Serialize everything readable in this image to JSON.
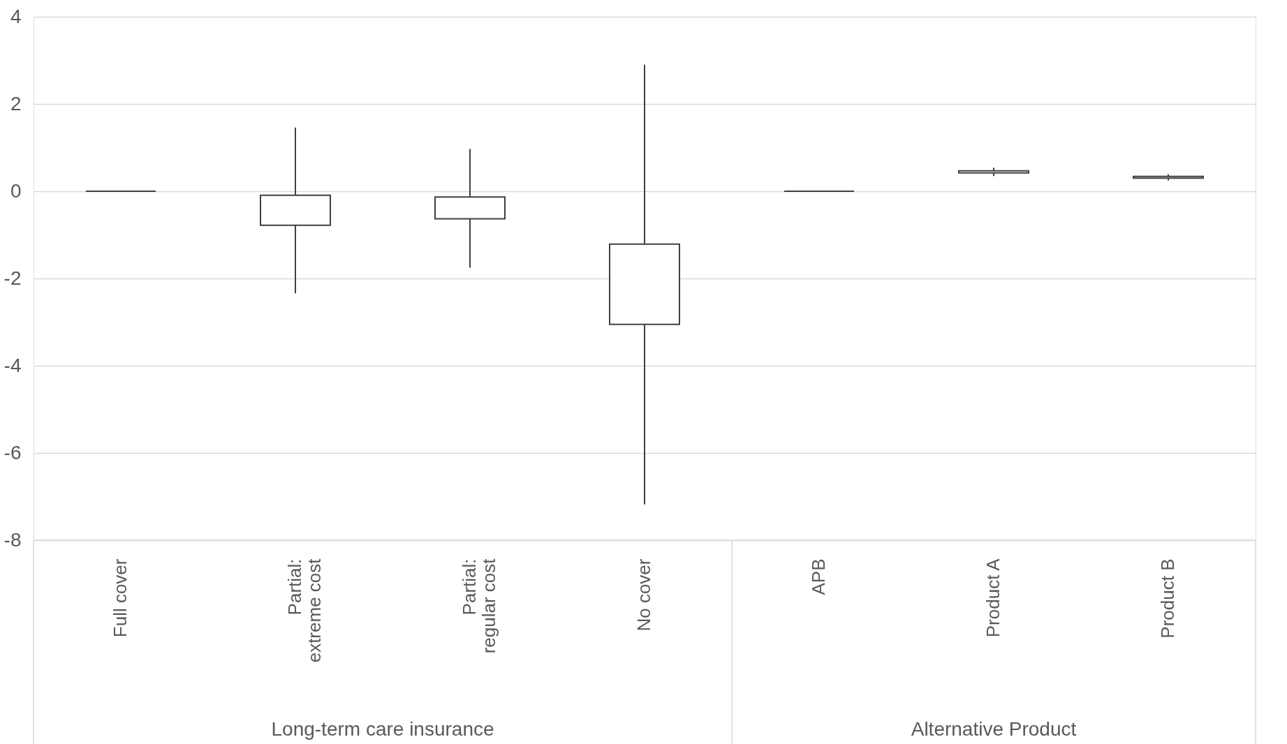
{
  "chart_data": {
    "type": "candlestick",
    "categories": [
      "Full cover",
      "Partial:\nextreme cost",
      "Partial:\nregular cost",
      "No cover",
      "APB",
      "Product A",
      "Product B"
    ],
    "ohlc": [
      [
        0,
        0,
        0,
        0
      ],
      [
        -0.78,
        1.46,
        -2.34,
        -0.09
      ],
      [
        -0.63,
        0.97,
        -1.75,
        -0.13
      ],
      [
        -3.05,
        2.9,
        -7.18,
        -1.21
      ],
      [
        0,
        0,
        0,
        0
      ],
      [
        0.42,
        0.54,
        0.35,
        0.47
      ],
      [
        0.3,
        0.39,
        0.25,
        0.34
      ]
    ],
    "color": "#404040",
    "ylim": [
      -8,
      4
    ],
    "yticks": [
      -8,
      -6,
      -4,
      -2,
      0,
      2,
      4
    ],
    "grid": "y",
    "annotations": [
      "Long-term care insurance",
      "Alternative Product"
    ]
  }
}
